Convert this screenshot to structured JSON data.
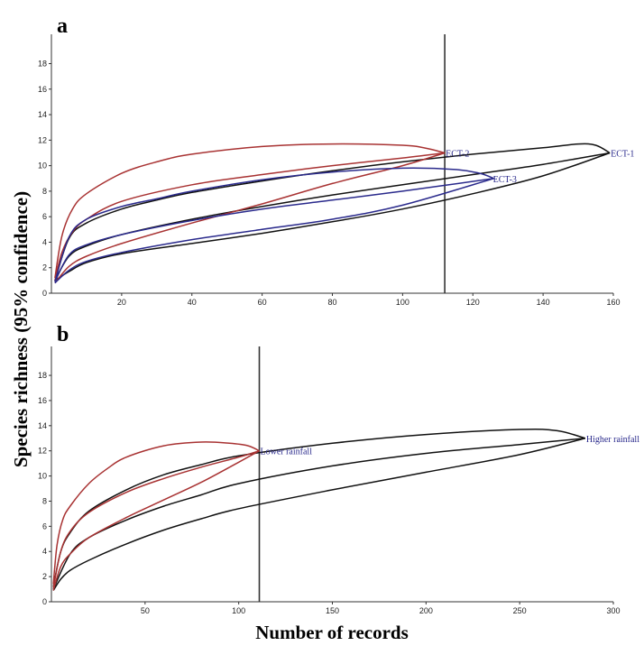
{
  "ylabel": "Species richness (95% confidence)",
  "xlabel": "Number of records",
  "colors": {
    "black": "#111111",
    "red": "#a83232",
    "blue": "#2a2a8c",
    "label": "#2a2a8c"
  },
  "chart_data": [
    {
      "type": "line",
      "panel": "a",
      "xlim": [
        0,
        160
      ],
      "ylim": [
        0,
        20
      ],
      "xticks": [
        20,
        40,
        60,
        80,
        100,
        120,
        140,
        160
      ],
      "yticks": [
        0,
        2,
        4,
        6,
        8,
        10,
        12,
        14,
        16,
        18
      ],
      "reference_x": 112,
      "series": [
        {
          "name": "ECT-1",
          "color": "black",
          "end_x": 159,
          "end_y": 11,
          "upper": [
            [
              1,
              1
            ],
            [
              5,
              4.3
            ],
            [
              10,
              5.5
            ],
            [
              20,
              6.6
            ],
            [
              30,
              7.3
            ],
            [
              40,
              7.9
            ],
            [
              60,
              8.8
            ],
            [
              80,
              9.6
            ],
            [
              100,
              10.3
            ],
            [
              120,
              10.9
            ],
            [
              140,
              11.4
            ],
            [
              150,
              11.7
            ],
            [
              155,
              11.6
            ],
            [
              159,
              11
            ]
          ],
          "mean": [
            [
              1,
              1
            ],
            [
              5,
              2.9
            ],
            [
              10,
              3.7
            ],
            [
              20,
              4.6
            ],
            [
              40,
              5.8
            ],
            [
              60,
              6.8
            ],
            [
              80,
              7.7
            ],
            [
              100,
              8.5
            ],
            [
              120,
              9.3
            ],
            [
              140,
              10.1
            ],
            [
              159,
              11
            ]
          ],
          "lower": [
            [
              1,
              1
            ],
            [
              5,
              1.7
            ],
            [
              10,
              2.4
            ],
            [
              20,
              3.1
            ],
            [
              40,
              3.9
            ],
            [
              60,
              4.7
            ],
            [
              80,
              5.6
            ],
            [
              100,
              6.6
            ],
            [
              120,
              7.8
            ],
            [
              140,
              9.2
            ],
            [
              159,
              11
            ]
          ]
        },
        {
          "name": "ECT-2",
          "color": "red",
          "end_x": 112,
          "end_y": 11,
          "upper": [
            [
              1,
              1.2
            ],
            [
              3,
              4.5
            ],
            [
              6,
              6.6
            ],
            [
              10,
              7.8
            ],
            [
              20,
              9.4
            ],
            [
              30,
              10.3
            ],
            [
              40,
              10.9
            ],
            [
              60,
              11.5
            ],
            [
              80,
              11.7
            ],
            [
              100,
              11.6
            ],
            [
              106,
              11.4
            ],
            [
              112,
              11
            ]
          ],
          "mean": [
            [
              1,
              1
            ],
            [
              3,
              3.2
            ],
            [
              6,
              4.8
            ],
            [
              10,
              5.8
            ],
            [
              20,
              7.2
            ],
            [
              40,
              8.5
            ],
            [
              60,
              9.3
            ],
            [
              80,
              10
            ],
            [
              100,
              10.6
            ],
            [
              112,
              11
            ]
          ],
          "lower": [
            [
              1,
              0.8
            ],
            [
              5,
              2.1
            ],
            [
              10,
              2.9
            ],
            [
              20,
              3.9
            ],
            [
              40,
              5.5
            ],
            [
              60,
              7
            ],
            [
              80,
              8.6
            ],
            [
              100,
              10
            ],
            [
              112,
              11
            ]
          ]
        },
        {
          "name": "ECT-3",
          "color": "blue",
          "end_x": 126,
          "end_y": 9,
          "upper": [
            [
              1,
              0.9
            ],
            [
              5,
              4.4
            ],
            [
              10,
              5.8
            ],
            [
              20,
              6.8
            ],
            [
              30,
              7.4
            ],
            [
              40,
              8
            ],
            [
              60,
              8.9
            ],
            [
              80,
              9.5
            ],
            [
              100,
              9.8
            ],
            [
              115,
              9.7
            ],
            [
              122,
              9.4
            ],
            [
              126,
              9
            ]
          ],
          "mean": [
            [
              1,
              0.9
            ],
            [
              5,
              3
            ],
            [
              10,
              3.8
            ],
            [
              20,
              4.6
            ],
            [
              40,
              5.7
            ],
            [
              60,
              6.6
            ],
            [
              80,
              7.3
            ],
            [
              100,
              8
            ],
            [
              126,
              9
            ]
          ],
          "lower": [
            [
              1,
              0.8
            ],
            [
              5,
              1.8
            ],
            [
              10,
              2.5
            ],
            [
              20,
              3.2
            ],
            [
              40,
              4.2
            ],
            [
              60,
              5
            ],
            [
              80,
              5.8
            ],
            [
              100,
              6.9
            ],
            [
              126,
              9
            ]
          ]
        }
      ]
    },
    {
      "type": "line",
      "panel": "b",
      "xlim": [
        0,
        300
      ],
      "ylim": [
        0,
        20
      ],
      "xticks": [
        50,
        100,
        150,
        200,
        250,
        300
      ],
      "yticks": [
        0,
        2,
        4,
        6,
        8,
        10,
        12,
        14,
        16,
        18
      ],
      "reference_x": 111,
      "series": [
        {
          "name": "Higher rainfall",
          "color": "black",
          "end_x": 285,
          "end_y": 13,
          "upper": [
            [
              1,
              1.2
            ],
            [
              5,
              4
            ],
            [
              10,
              5.5
            ],
            [
              20,
              7.2
            ],
            [
              40,
              8.9
            ],
            [
              60,
              10.1
            ],
            [
              80,
              10.9
            ],
            [
              100,
              11.6
            ],
            [
              150,
              12.6
            ],
            [
              200,
              13.3
            ],
            [
              250,
              13.7
            ],
            [
              270,
              13.6
            ],
            [
              285,
              13
            ]
          ],
          "mean": [
            [
              1,
              1
            ],
            [
              10,
              3.8
            ],
            [
              20,
              5.1
            ],
            [
              40,
              6.5
            ],
            [
              60,
              7.6
            ],
            [
              80,
              8.5
            ],
            [
              100,
              9.4
            ],
            [
              150,
              10.8
            ],
            [
              200,
              11.8
            ],
            [
              250,
              12.5
            ],
            [
              285,
              13
            ]
          ],
          "lower": [
            [
              1,
              0.9
            ],
            [
              5,
              1.8
            ],
            [
              10,
              2.5
            ],
            [
              20,
              3.3
            ],
            [
              40,
              4.6
            ],
            [
              60,
              5.7
            ],
            [
              80,
              6.6
            ],
            [
              100,
              7.4
            ],
            [
              150,
              8.9
            ],
            [
              200,
              10.3
            ],
            [
              250,
              11.7
            ],
            [
              285,
              13
            ]
          ]
        },
        {
          "name": "Lower rainfall",
          "color": "red",
          "end_x": 111,
          "end_y": 12,
          "upper": [
            [
              1,
              1.4
            ],
            [
              3,
              4.5
            ],
            [
              6,
              6.5
            ],
            [
              10,
              7.6
            ],
            [
              20,
              9.4
            ],
            [
              30,
              10.6
            ],
            [
              40,
              11.5
            ],
            [
              60,
              12.4
            ],
            [
              80,
              12.7
            ],
            [
              95,
              12.6
            ],
            [
              105,
              12.4
            ],
            [
              111,
              12
            ]
          ],
          "mean": [
            [
              1,
              1.1
            ],
            [
              5,
              4
            ],
            [
              10,
              5.6
            ],
            [
              20,
              7.1
            ],
            [
              40,
              8.7
            ],
            [
              60,
              9.8
            ],
            [
              80,
              10.7
            ],
            [
              100,
              11.5
            ],
            [
              111,
              12
            ]
          ],
          "lower": [
            [
              1,
              0.9
            ],
            [
              5,
              2.8
            ],
            [
              10,
              3.8
            ],
            [
              20,
              5.1
            ],
            [
              40,
              6.7
            ],
            [
              60,
              8.1
            ],
            [
              80,
              9.5
            ],
            [
              100,
              11.1
            ],
            [
              111,
              12
            ]
          ]
        }
      ]
    }
  ]
}
